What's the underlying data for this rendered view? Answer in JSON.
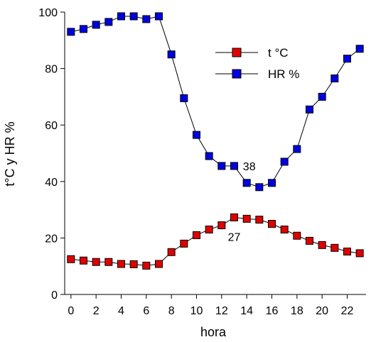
{
  "chart_data": {
    "type": "line",
    "xlabel": "hora",
    "ylabel": "t°C y HR %",
    "xlim": [
      -0.5,
      23.5
    ],
    "ylim": [
      0,
      100
    ],
    "x_ticks": [
      0,
      2,
      4,
      6,
      8,
      10,
      12,
      14,
      16,
      18,
      20,
      22
    ],
    "y_ticks": [
      0,
      20,
      40,
      60,
      80,
      100
    ],
    "grid": false,
    "legend": "top-right",
    "x": [
      0,
      1,
      2,
      3,
      4,
      5,
      6,
      7,
      8,
      9,
      10,
      11,
      12,
      13,
      14,
      15,
      16,
      17,
      18,
      19,
      20,
      21,
      22,
      23
    ],
    "series": [
      {
        "name": "t °C",
        "color": "#e00000",
        "values": [
          12.5,
          12,
          11.5,
          11.5,
          10.8,
          10.7,
          10.2,
          10.8,
          15,
          18,
          21,
          23,
          24.5,
          27.3,
          26.8,
          26.5,
          25,
          23,
          20.8,
          19,
          17.5,
          16.5,
          15.2,
          14.6
        ]
      },
      {
        "name": "HR %",
        "color": "#0000e0",
        "values": [
          93,
          94,
          95.5,
          96.5,
          98.5,
          98.5,
          97.5,
          98.5,
          85,
          69.5,
          56.5,
          49,
          45.5,
          45.5,
          39.5,
          38,
          39.5,
          47,
          51.5,
          65.5,
          70,
          76.5,
          83.5,
          87
        ]
      }
    ],
    "annotations": [
      {
        "text": "38",
        "x": 14.2,
        "y": 44
      },
      {
        "text": "27",
        "x": 13,
        "y": 19
      }
    ]
  }
}
